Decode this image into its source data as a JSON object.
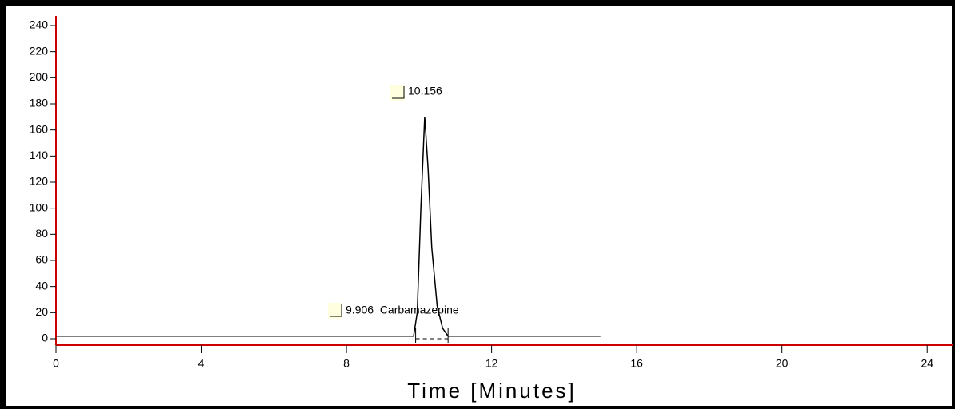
{
  "chart_data": {
    "type": "line",
    "x_label": "Time  [Minutes]",
    "x": [
      0,
      9.85,
      9.95,
      10.05,
      10.156,
      10.25,
      10.35,
      10.5,
      10.65,
      10.8,
      15
    ],
    "series": [
      {
        "color": "#000000",
        "values": [
          2,
          2,
          20,
          100,
          170,
          130,
          70,
          25,
          8,
          2,
          2
        ]
      }
    ],
    "annotations": [
      "10.156",
      "9.906  Carbamazepine"
    ],
    "xlim": [
      0,
      24.7
    ],
    "xticks": [
      0,
      4,
      8,
      12,
      16,
      20,
      24
    ],
    "ylim": [
      0,
      240
    ],
    "yticks": [
      0,
      20,
      40,
      60,
      80,
      100,
      120,
      140,
      160,
      180,
      200,
      220,
      240
    ],
    "axis_color": "#cc0000"
  }
}
